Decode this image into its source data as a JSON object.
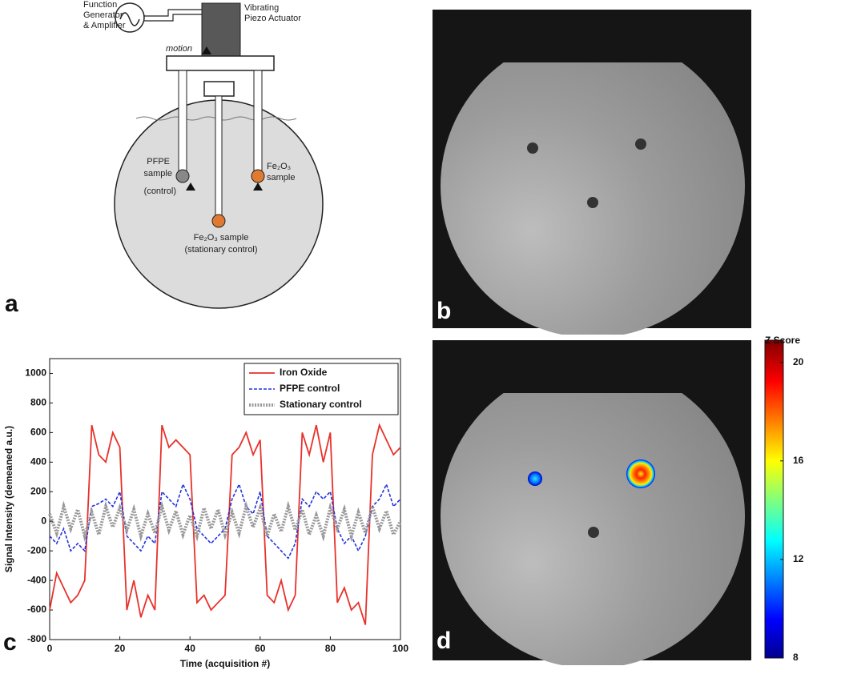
{
  "panel_labels": [
    "a",
    "b",
    "c",
    "d"
  ],
  "diagram": {
    "function_generator": [
      "Function",
      "Generator",
      "& Amplifier"
    ],
    "actuator": [
      "Vibrating",
      "Piezo Actuator"
    ],
    "motion": "motion",
    "pfpe": [
      "PFPE",
      "sample",
      "(control)"
    ],
    "fe_moving": [
      "Fe₂O₃",
      "sample"
    ],
    "fe_stationary": [
      "Fe₂O₃ sample",
      "(stationary control)"
    ]
  },
  "colorbar": {
    "title": "Z Score",
    "lim": [
      8,
      20.9
    ],
    "ticks": [
      8,
      12,
      16,
      20
    ]
  },
  "chart_data": {
    "type": "line",
    "xlabel": "Time (acquisition #)",
    "ylabel": "Signal Intensity (demeaned a.u.)",
    "xlim": [
      0,
      100
    ],
    "xticks": [
      0,
      20,
      40,
      60,
      80,
      100
    ],
    "ylim": [
      -800,
      1100
    ],
    "yticks": [
      -800,
      -600,
      -400,
      -200,
      0,
      200,
      400,
      600,
      800,
      1000
    ],
    "legend": "top-right",
    "x": [
      0,
      2,
      4,
      6,
      8,
      10,
      12,
      14,
      16,
      18,
      20,
      22,
      24,
      26,
      28,
      30,
      32,
      34,
      36,
      38,
      40,
      42,
      44,
      46,
      48,
      50,
      52,
      54,
      56,
      58,
      60,
      62,
      64,
      66,
      68,
      70,
      72,
      74,
      76,
      78,
      80,
      82,
      84,
      86,
      88,
      90,
      92,
      94,
      96,
      98,
      100
    ],
    "series": [
      {
        "name": "Iron Oxide",
        "color": "#e8312a",
        "line_style": "solid",
        "values": [
          -600,
          -350,
          -450,
          -550,
          -500,
          -400,
          650,
          450,
          400,
          600,
          500,
          -600,
          -400,
          -650,
          -500,
          -600,
          650,
          500,
          550,
          500,
          450,
          -550,
          -500,
          -600,
          -550,
          -500,
          450,
          500,
          600,
          450,
          550,
          -500,
          -550,
          -400,
          -600,
          -500,
          600,
          450,
          650,
          400,
          600,
          -550,
          -450,
          -600,
          -550,
          -700,
          450,
          650,
          550,
          450,
          500
        ]
      },
      {
        "name": "PFPE control",
        "color": "#2233dd",
        "line_style": "dashed",
        "values": [
          -100,
          -150,
          -50,
          -200,
          -150,
          -200,
          100,
          120,
          150,
          100,
          200,
          -100,
          -150,
          -200,
          -100,
          -150,
          200,
          150,
          100,
          250,
          150,
          -50,
          -100,
          -150,
          -100,
          -50,
          150,
          250,
          100,
          50,
          200,
          -100,
          -150,
          -200,
          -250,
          -150,
          150,
          100,
          200,
          150,
          200,
          -50,
          -150,
          -100,
          -200,
          -100,
          100,
          150,
          250,
          100,
          150
        ]
      },
      {
        "name": "Stationary control",
        "color": "#9a9a9a",
        "line_style": "dotted",
        "values": [
          50,
          -80,
          100,
          -50,
          80,
          -100,
          60,
          -90,
          100,
          -40,
          90,
          -60,
          80,
          -100,
          50,
          -80,
          100,
          -60,
          70,
          -90,
          40,
          -100,
          90,
          -50,
          80,
          -90,
          60,
          -80,
          100,
          -40,
          90,
          -100,
          50,
          -70,
          100,
          -60,
          80,
          -90,
          40,
          -100,
          90,
          -50,
          80,
          -100,
          60,
          -80,
          100,
          -50,
          70,
          -90,
          0
        ]
      }
    ]
  }
}
